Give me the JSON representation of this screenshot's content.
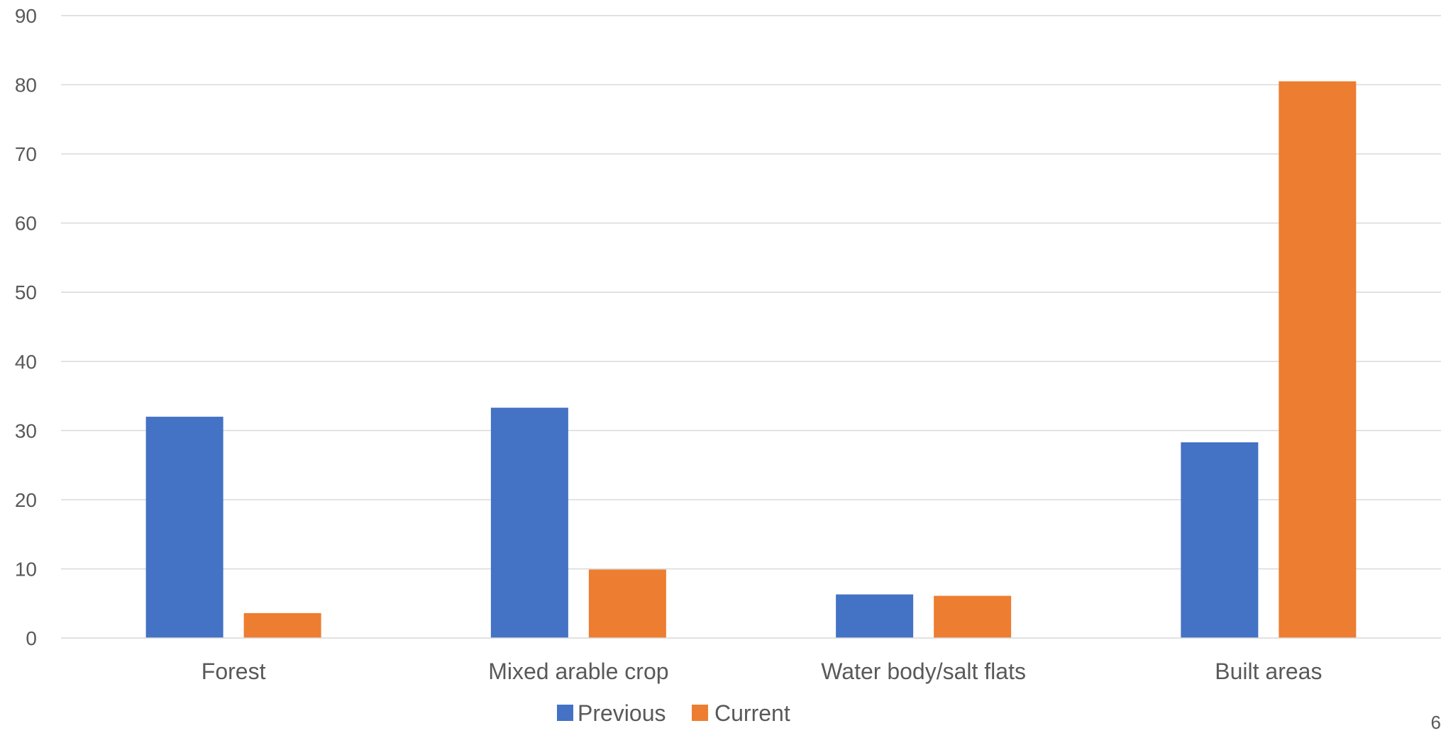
{
  "chart_data": {
    "type": "bar",
    "categories": [
      "Forest",
      "Mixed arable crop",
      "Water body/salt flats",
      "Built areas"
    ],
    "series": [
      {
        "name": "Previous",
        "values": [
          32,
          33.3,
          6.3,
          28.3
        ],
        "color": "#4472c4"
      },
      {
        "name": "Current",
        "values": [
          3.6,
          9.9,
          6.1,
          80.5
        ],
        "color": "#ed7d31"
      }
    ],
    "title": "",
    "xlabel": "",
    "ylabel": "",
    "ylim": [
      0,
      90
    ],
    "yticks": [
      "0",
      "10",
      "20",
      "30",
      "40",
      "50",
      "60",
      "70",
      "80",
      "90"
    ],
    "grid": true,
    "legend": "bottom-center"
  },
  "page_number": "6"
}
